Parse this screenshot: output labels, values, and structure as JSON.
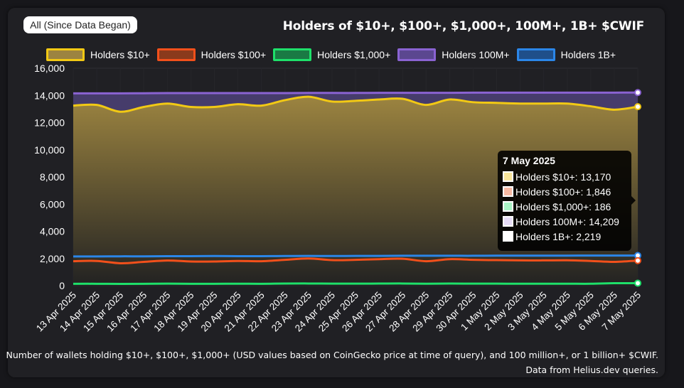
{
  "range_button": "All (Since Data Began)",
  "tooltip": {
    "date": "7 May 2025",
    "rows": [
      {
        "label": "Holders $10+",
        "value": "13,170"
      },
      {
        "label": "Holders $100+",
        "value": "1,846"
      },
      {
        "label": "Holders $1,000+",
        "value": "186"
      },
      {
        "label": "Holders 100M+",
        "value": "14,209"
      },
      {
        "label": "Holders 1B+",
        "value": "2,219"
      }
    ]
  },
  "footnote": {
    "line1": "Number of wallets holding $10+, $100+, $1,000+ (USD values based on CoinGecko price at time of query), and 100 million+, or 1 billion+ $CWIF.",
    "line2": "Data from Helius.dev queries."
  },
  "colors": {
    "h10": "#f2c914",
    "h100": "#f2501b",
    "h1000": "#1ee06a",
    "m100": "#8a63d2",
    "b1": "#2b86e8",
    "area_top": "#9c8440",
    "area_bottom": "#222222",
    "tick": "#ffffff"
  },
  "chart_data": {
    "type": "line",
    "title": "Holders of $10+, $100+, $1,000+, 100M+, 1B+ $CWIF",
    "categories": [
      "13 Apr 2025",
      "14 Apr 2025",
      "15 Apr 2025",
      "16 Apr 2025",
      "17 Apr 2025",
      "18 Apr 2025",
      "19 Apr 2025",
      "20 Apr 2025",
      "21 Apr 2025",
      "22 Apr 2025",
      "23 Apr 2025",
      "24 Apr 2025",
      "25 Apr 2025",
      "26 Apr 2025",
      "27 Apr 2025",
      "28 Apr 2025",
      "29 Apr 2025",
      "30 Apr 2025",
      "1 May 2025",
      "2 May 2025",
      "3 May 2025",
      "4 May 2025",
      "5 May 2025",
      "6 May 2025",
      "7 May 2025"
    ],
    "ylim": [
      0,
      16000
    ],
    "yticks": [
      0,
      2000,
      4000,
      6000,
      8000,
      10000,
      12000,
      14000,
      16000
    ],
    "ytick_labels": [
      "0",
      "2,000",
      "4,000",
      "6,000",
      "8,000",
      "10,000",
      "12,000",
      "14,000",
      "16,000"
    ],
    "grid": true,
    "legend_position": "top",
    "series": [
      {
        "key": "h10",
        "name": "Holders $10+",
        "fill": true,
        "values": [
          13250,
          13300,
          12800,
          13150,
          13400,
          13150,
          13150,
          13350,
          13250,
          13650,
          13900,
          13550,
          13600,
          13700,
          13750,
          13300,
          13700,
          13500,
          13450,
          13400,
          13400,
          13400,
          13200,
          12950,
          13170
        ]
      },
      {
        "key": "h100",
        "name": "Holders $100+",
        "fill": false,
        "values": [
          1800,
          1820,
          1650,
          1750,
          1850,
          1780,
          1780,
          1820,
          1800,
          1900,
          2000,
          1880,
          1900,
          1950,
          1980,
          1800,
          1950,
          1900,
          1880,
          1860,
          1860,
          1870,
          1820,
          1750,
          1846
        ]
      },
      {
        "key": "h1000",
        "name": "Holders $1,000+",
        "fill": false,
        "values": [
          140,
          140,
          130,
          135,
          150,
          140,
          140,
          145,
          140,
          155,
          160,
          150,
          150,
          155,
          160,
          145,
          155,
          150,
          148,
          145,
          145,
          145,
          142,
          180,
          186
        ]
      },
      {
        "key": "m100",
        "name": "Holders 100M+",
        "fill": true,
        "values": [
          14150,
          14150,
          14150,
          14160,
          14170,
          14170,
          14170,
          14170,
          14170,
          14170,
          14180,
          14180,
          14180,
          14190,
          14190,
          14190,
          14190,
          14200,
          14200,
          14200,
          14200,
          14200,
          14200,
          14205,
          14209
        ]
      },
      {
        "key": "b1",
        "name": "Holders 1B+",
        "fill": false,
        "values": [
          2150,
          2150,
          2160,
          2160,
          2170,
          2170,
          2180,
          2170,
          2170,
          2180,
          2190,
          2180,
          2190,
          2190,
          2200,
          2200,
          2200,
          2200,
          2210,
          2210,
          2210,
          2210,
          2215,
          2215,
          2219
        ]
      }
    ]
  }
}
